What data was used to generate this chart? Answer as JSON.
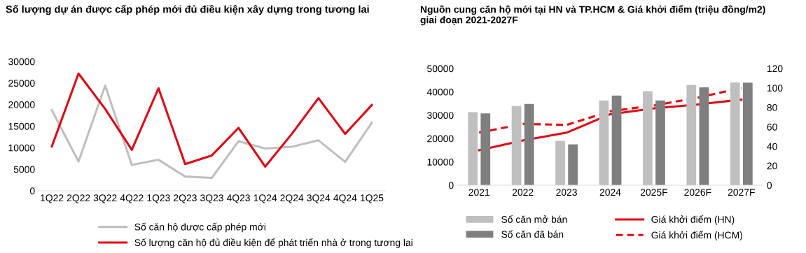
{
  "chart_data": [
    {
      "type": "line",
      "title": "Số lượng dự án được cấp phép mới đủ điều kiện xây dựng trong tương lai",
      "categories": [
        "1Q22",
        "2Q22",
        "3Q22",
        "4Q22",
        "1Q23",
        "2Q23",
        "3Q23",
        "4Q23",
        "1Q24",
        "2Q24",
        "3Q24",
        "4Q24",
        "1Q25"
      ],
      "series": [
        {
          "name": "Số căn hộ được cấp phép mới",
          "color": "#bfbfbf",
          "values": [
            18700,
            6800,
            24400,
            6000,
            7200,
            3300,
            3000,
            11500,
            9800,
            10200,
            11700,
            6700,
            15800
          ]
        },
        {
          "name": "Số lượng căn hộ đủ điều kiện để phát triển nhà ở trong tương lai",
          "color": "#e30613",
          "values": [
            10300,
            27200,
            19000,
            9500,
            23800,
            6200,
            8200,
            14600,
            5600,
            13200,
            21500,
            13200,
            19900
          ]
        }
      ],
      "ylim": [
        0,
        30000
      ],
      "yticks": [
        0,
        5000,
        10000,
        15000,
        20000,
        25000,
        30000
      ],
      "grid": false,
      "legend": "bottom",
      "line_style": "solid",
      "marker": "none"
    },
    {
      "type": "bar",
      "title": "Nguồn cung căn hộ mới tại HN và TP.HCM & Giá khởi điểm (triệu đồng/m2)\ngiai đoạn 2021-2027F",
      "categories": [
        "2021",
        "2022",
        "2023",
        "2024",
        "2025F",
        "2026F",
        "2027F"
      ],
      "series": [
        {
          "name": "Số căn mở bán",
          "type": "bar",
          "color": "#bfbfbf",
          "values": [
            31300,
            33900,
            19000,
            36300,
            40300,
            43000,
            44000
          ]
        },
        {
          "name": "Số căn đã bán",
          "type": "bar",
          "color": "#7f7f7f",
          "values": [
            30800,
            34800,
            17500,
            38400,
            36300,
            41900,
            43900
          ]
        },
        {
          "name": "Giá khởi điểm (HN)",
          "type": "line",
          "axis": "y2",
          "color": "#e30613",
          "line_style": "solid",
          "values": [
            36,
            46,
            54,
            73,
            79,
            83,
            88
          ]
        },
        {
          "name": "Giá khởi điểm (HCM)",
          "type": "line",
          "axis": "y2",
          "color": "#e30613",
          "line_style": "dashed",
          "values": [
            54,
            63,
            62,
            76,
            82,
            90,
            100
          ]
        }
      ],
      "ylim": [
        0,
        50000
      ],
      "yticks": [
        0,
        10000,
        20000,
        30000,
        40000,
        50000
      ],
      "y2lim": [
        0,
        120
      ],
      "y2ticks": [
        0,
        20,
        40,
        60,
        80,
        100,
        120
      ],
      "grid": false,
      "legend": "bottom",
      "marker": "none"
    }
  ]
}
